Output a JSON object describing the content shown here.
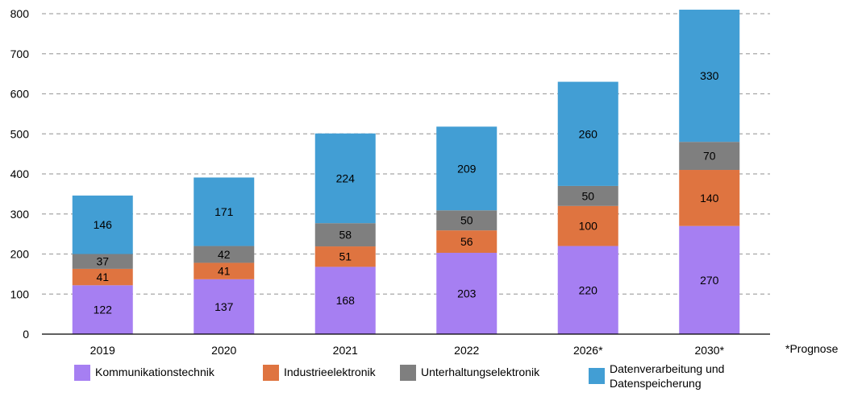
{
  "chart_data": {
    "type": "bar",
    "stacked": true,
    "categories": [
      "2019",
      "2020",
      "2021",
      "2022",
      "2026*",
      "2030*"
    ],
    "series": [
      {
        "name": "Kommunikationstechnik",
        "color": "#a67ff2",
        "values": [
          122,
          137,
          168,
          203,
          220,
          270
        ]
      },
      {
        "name": "Industrieelektronik",
        "color": "#df7440",
        "values": [
          41,
          41,
          51,
          56,
          100,
          140
        ]
      },
      {
        "name": "Unterhaltungselektronik",
        "color": "#7f7f7f",
        "values": [
          37,
          42,
          58,
          50,
          50,
          70
        ]
      },
      {
        "name": "Datenverarbeitung und\nDatenspeicherung",
        "color": "#429ed4",
        "values": [
          146,
          171,
          224,
          209,
          260,
          330
        ]
      }
    ],
    "ylim": [
      0,
      800
    ],
    "yticks": [
      "0",
      "100",
      "200",
      "300",
      "400",
      "500",
      "600",
      "700",
      "800"
    ],
    "grid": true,
    "legend_position": "bottom",
    "footnote": "*Prognose"
  }
}
